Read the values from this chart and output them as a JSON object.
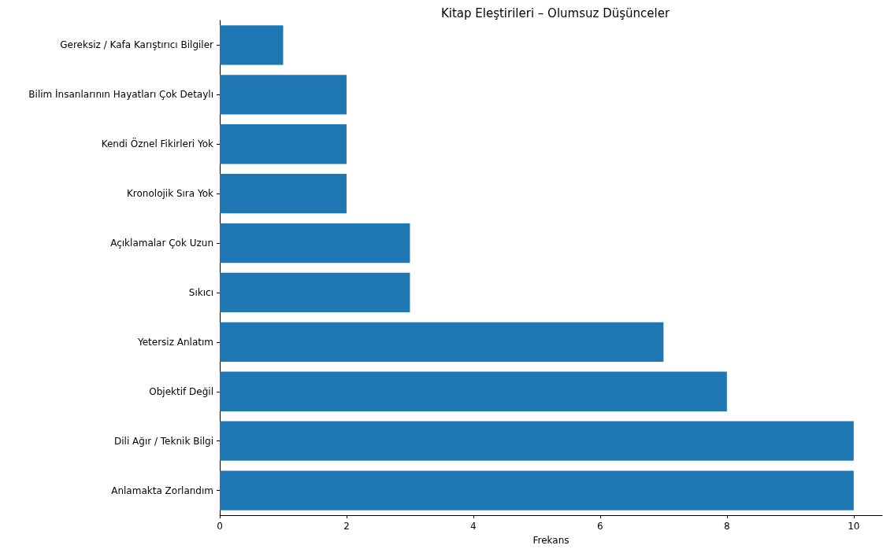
{
  "chart_data": {
    "type": "bar",
    "orientation": "horizontal",
    "title": "Kitap Eleştirileri – Olumsuz Düşünceler",
    "xlabel": "Frekans",
    "categories": [
      "Gereksiz / Kafa Karıştırıcı Bilgiler",
      "Bilim İnsanlarının Hayatları Çok Detaylı",
      "Kendi Öznel Fikirleri Yok",
      "Kronolojik Sıra Yok",
      "Açıklamalar Çok Uzun",
      "Sıkıcı",
      "Yetersiz Anlatım",
      "Objektif Değil",
      "Dili Ağır / Teknik Bilgi",
      "Anlamakta Zorlandım"
    ],
    "values": [
      1,
      2,
      2,
      2,
      3,
      3,
      7,
      8,
      10,
      10
    ],
    "color": "#1f77b4",
    "xlim": [
      0,
      10.45
    ],
    "xticks": [
      0,
      2,
      4,
      6,
      8,
      10
    ],
    "grid": false
  }
}
